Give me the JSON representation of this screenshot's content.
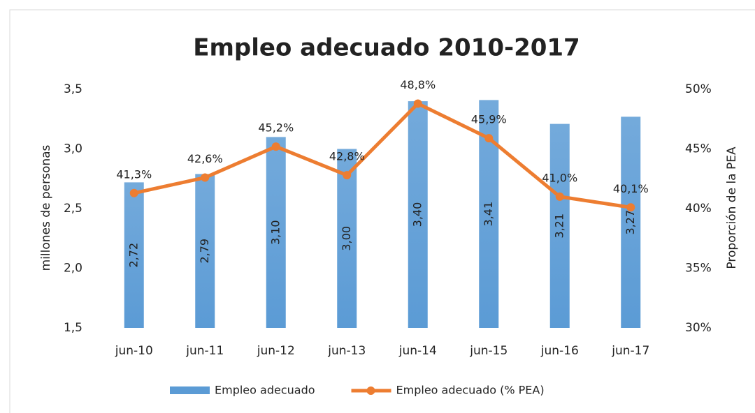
{
  "chart_data": {
    "type": "bar",
    "title": "Empleo adecuado  2010-2017",
    "y_label": "millones de personas",
    "y2_label": "Proporción de la PEA",
    "categories": [
      "jun-10",
      "jun-11",
      "jun-12",
      "jun-13",
      "jun-14",
      "jun-15",
      "jun-16",
      "jun-17"
    ],
    "series": [
      {
        "name": "Empleo adecuado",
        "type": "bar",
        "color": "#5b9bd5",
        "values": [
          2.72,
          2.79,
          3.1,
          3.0,
          3.4,
          3.41,
          3.21,
          3.27
        ],
        "value_labels": [
          "2,72",
          "2,79",
          "3,10",
          "3,00",
          "3,40",
          "3,41",
          "3,21",
          "3,27"
        ]
      },
      {
        "name": "Empleo adecuado (% PEA)",
        "type": "line",
        "axis": "y2",
        "color": "#ed7d31",
        "values": [
          41.3,
          42.6,
          45.2,
          42.8,
          48.8,
          45.9,
          41.0,
          40.1
        ],
        "value_labels": [
          "41,3%",
          "42,6%",
          "45,2%",
          "42,8%",
          "48,8%",
          "45,9%",
          "41,0%",
          "40,1%"
        ]
      }
    ],
    "ylim": [
      1.5,
      3.5
    ],
    "yticks": [
      {
        "value": 1.5,
        "label": "1,5"
      },
      {
        "value": 2.0,
        "label": "2,0"
      },
      {
        "value": 2.5,
        "label": "2,5"
      },
      {
        "value": 3.0,
        "label": "3,0"
      },
      {
        "value": 3.5,
        "label": "3,5"
      }
    ],
    "y2lim": [
      30,
      50
    ],
    "y2ticks": [
      {
        "value": 30,
        "label": "30%"
      },
      {
        "value": 35,
        "label": "35%"
      },
      {
        "value": 40,
        "label": "40%"
      },
      {
        "value": 45,
        "label": "45%"
      },
      {
        "value": 50,
        "label": "50%"
      }
    ],
    "legend": "bottom"
  }
}
